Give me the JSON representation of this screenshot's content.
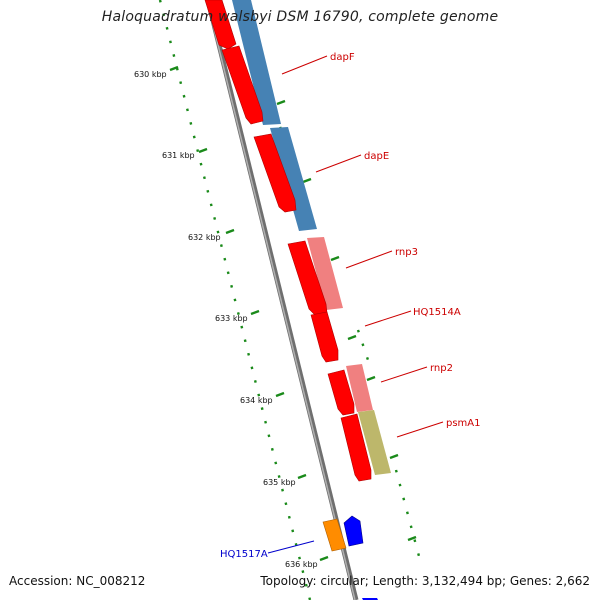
{
  "title": "Haloquadratum walsbyi DSM 16790, complete genome",
  "footer": {
    "accession": "Accession: NC_008212",
    "summary": "Topology: circular; Length: 3,132,494 bp; Genes: 2,662"
  },
  "colors": {
    "backbone": "#8a8a8a",
    "cds_red": "#ff0000",
    "blue_track": "#4682b4",
    "pink_track": "#f08080",
    "khaki_track": "#bdb76b",
    "orange": "#ff8c00",
    "blue": "#0000ff",
    "tick_green": "#1a8a1a",
    "label_red": "#cc0000",
    "label_blue": "#0000cc"
  },
  "ruler": {
    "ticks": [
      "630 kbp",
      "631 kbp",
      "632 kbp",
      "633 kbp",
      "634 kbp",
      "635 kbp",
      "636 kbp"
    ]
  },
  "genes": [
    {
      "label": "dapF",
      "color": "#cc0000"
    },
    {
      "label": "dapE",
      "color": "#cc0000"
    },
    {
      "label": "rnp3",
      "color": "#cc0000"
    },
    {
      "label": "HQ1514A",
      "color": "#cc0000"
    },
    {
      "label": "rnp2",
      "color": "#cc0000"
    },
    {
      "label": "psmA1",
      "color": "#cc0000"
    },
    {
      "label": "HQ1517A",
      "color": "#0000cc"
    }
  ]
}
